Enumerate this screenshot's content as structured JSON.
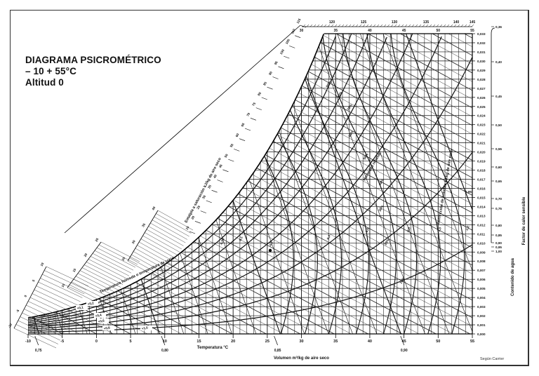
{
  "title": {
    "line1": "DIAGRAMA PSICROMÉTRICO",
    "line2": "– 10  + 55°C",
    "line3": "Altitud 0"
  },
  "credit": "Según Carrier",
  "chart_data": {
    "type": "line",
    "title": "Diagrama psicrométrico -10 +55°C, Altitud 0",
    "xlabel": "Temperatura °C",
    "ylabel": "Contenido de agua",
    "xlim": [
      -10,
      55
    ],
    "ylim": [
      0.0,
      0.033
    ],
    "grid": true,
    "x_ticks": [
      -10,
      -5,
      0,
      5,
      10,
      15,
      20,
      25,
      30,
      35,
      40,
      45,
      50,
      55
    ],
    "y_ticks": [
      "0,000",
      "0,001",
      "0,002",
      "0,003",
      "0,004",
      "0,005",
      "0,006",
      "0,007",
      "0,008",
      "0,009",
      "0,010",
      "0,011",
      "0,012",
      "0,013",
      "0,014",
      "0,015",
      "0,016",
      "0,017",
      "0,018",
      "0,019",
      "0,020",
      "0,021",
      "0,022",
      "0,023",
      "0,024",
      "0,025",
      "0,026",
      "0,027",
      "0,028",
      "0,029",
      "0,030",
      "0,031",
      "0,032",
      "0,033"
    ],
    "top_temperature_ticks": [
      30,
      35,
      40,
      45,
      50,
      55
    ],
    "enthalpy_scale": {
      "label": "Entalpía a saturación kJ/kg de aire seco",
      "ticks_left": [
        -10,
        -5,
        0,
        5,
        10,
        15,
        20,
        25,
        30,
        35,
        40,
        45,
        50,
        55,
        60,
        65,
        70,
        75,
        80,
        85,
        90,
        95,
        100,
        105,
        110,
        115
      ],
      "ticks_top": [
        120,
        125,
        130,
        135,
        140,
        145
      ]
    },
    "dew_point_scale": {
      "label": "Temperatura húmeda o temperatura de rocío",
      "ticks": [
        -10,
        -5,
        0,
        5,
        10,
        15,
        20,
        25,
        30
      ]
    },
    "volume_scale": {
      "label": "Volumen m³/kg de aire seco",
      "ticks": [
        "0,75",
        "0,80",
        "0,85",
        "0,90"
      ],
      "tick_temperatures": [
        -9,
        9.5,
        26,
        44.5
      ]
    },
    "sensible_heat_factor": {
      "label": "Factor de calor sensible",
      "ticks": [
        "0,36",
        "0,40",
        "0,45",
        "0,50",
        "0,55",
        "0,60",
        "0,65",
        "0,70",
        "0,75",
        "0,80",
        "0,85",
        "0,90",
        "0,95",
        "1,00"
      ]
    },
    "enthalpy_correction": {
      "label": "Corrección de entalpía kJ/kg de aire seco",
      "values": [
        "+0,1",
        "+0,2",
        "+0,4",
        "+0,6",
        "+0,8",
        "+1,0",
        "-0,05",
        "-0,1",
        "-0,2",
        "-0,4",
        "-0,6",
        "-0,8",
        "-1,0",
        "-1,2"
      ]
    },
    "relative_humidity": {
      "label": "Humedad relativa",
      "series": [
        {
          "name": "10%",
          "values": [
            0.0002,
            0.0003,
            0.0004,
            0.0005,
            0.0008,
            0.0011,
            0.0015,
            0.002,
            0.0027,
            0.0036,
            0.0047,
            0.0062,
            0.008,
            0.0101
          ]
        },
        {
          "name": "20%",
          "values": [
            0.0003,
            0.0005,
            0.0008,
            0.0011,
            0.0015,
            0.0021,
            0.0029,
            0.004,
            0.0053,
            0.0071,
            0.0093,
            0.0122,
            0.0159,
            0.0203
          ]
        },
        {
          "name": "30%",
          "values": [
            0.0005,
            0.0008,
            0.0011,
            0.0016,
            0.0023,
            0.0032,
            0.0044,
            0.0059,
            0.008,
            0.0107,
            0.0141,
            0.0185,
            0.0241,
            0.031
          ]
        },
        {
          "name": "40%",
          "values": [
            0.0006,
            0.001,
            0.0015,
            0.0021,
            0.003,
            0.0043,
            0.0059,
            0.0079,
            0.0107,
            0.0143,
            0.019,
            0.0249,
            0.0326,
            null
          ]
        },
        {
          "name": "50%",
          "values": [
            0.0008,
            0.0013,
            0.0019,
            0.0027,
            0.0038,
            0.0053,
            0.0073,
            0.01,
            0.0134,
            0.018,
            0.0239,
            0.0315,
            null,
            null
          ]
        },
        {
          "name": "60%",
          "values": [
            0.001,
            0.0015,
            0.0023,
            0.0032,
            0.0046,
            0.0064,
            0.0088,
            0.012,
            0.0162,
            0.0217,
            0.0288,
            null,
            null,
            null
          ]
        },
        {
          "name": "70%",
          "values": [
            0.0011,
            0.0018,
            0.0026,
            0.0038,
            0.0053,
            0.0075,
            0.0103,
            0.014,
            0.0189,
            0.0254,
            null,
            null,
            null,
            null
          ]
        },
        {
          "name": "80%",
          "values": [
            0.0013,
            0.002,
            0.003,
            0.0043,
            0.0061,
            0.0085,
            0.0118,
            0.0161,
            0.0217,
            0.0292,
            null,
            null,
            null,
            null
          ]
        },
        {
          "name": "90%",
          "values": [
            0.0014,
            0.0023,
            0.0034,
            0.0048,
            0.0069,
            0.0096,
            0.0133,
            0.0181,
            0.0245,
            0.033,
            null,
            null,
            null,
            null
          ]
        },
        {
          "name": "100%",
          "values": [
            0.0016,
            0.0025,
            0.0038,
            0.0054,
            0.0076,
            0.0107,
            0.0148,
            0.0201,
            0.0273,
            null,
            null,
            null,
            null,
            null
          ]
        }
      ],
      "x": [
        -10,
        -5,
        0,
        5,
        10,
        15,
        20,
        25,
        30,
        35,
        40,
        45,
        50,
        55
      ]
    }
  },
  "axes_labels": {
    "x": "Temperatura °C",
    "volume": "Volumen m³/kg de aire seco",
    "water": "Contenido de agua",
    "shf": "Factor de calor sensible",
    "enthalpy": "Entalpía a saturación kJ/kg de aire seco",
    "wetbulb": "Temperatura húmeda o temperatura de rocío",
    "rh": "Humedad relativa",
    "correction": "Corrección de entalpía kJ/kg de aire seco"
  }
}
